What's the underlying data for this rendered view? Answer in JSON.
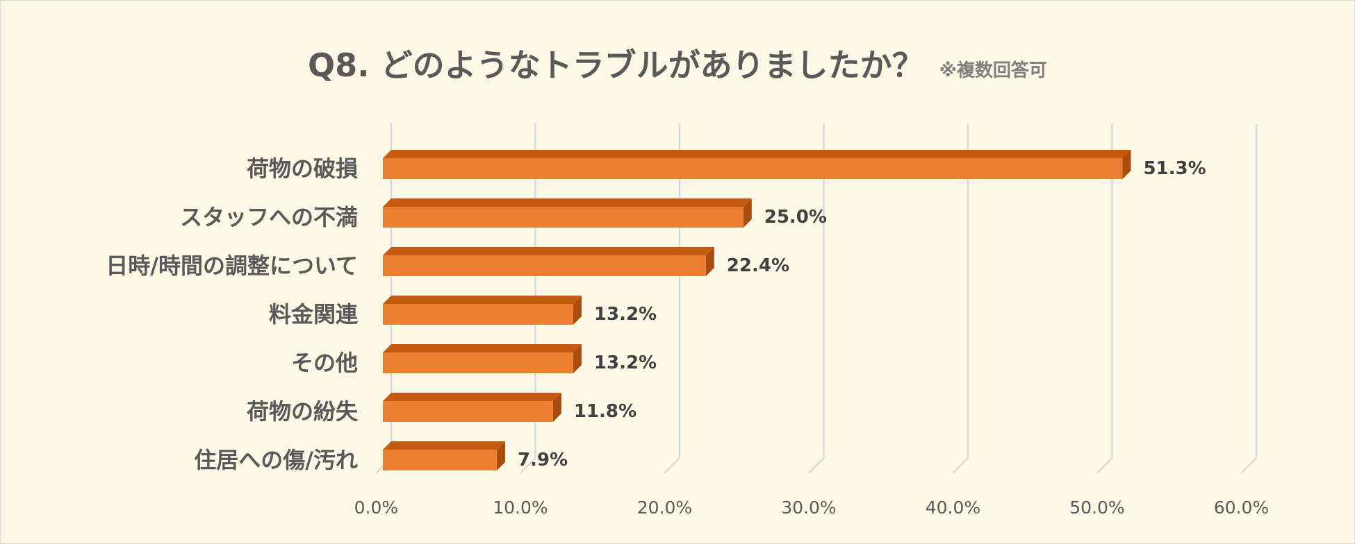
{
  "title": "Q8. どのようなトラブルがありましたか？",
  "subtitle": "※複数回答可",
  "chart_data": {
    "type": "bar",
    "orientation": "horizontal",
    "style": "3d",
    "categories": [
      "荷物の破損",
      "スタッフへの不満",
      "日時/時間の調整について",
      "料金関連",
      "その他",
      "荷物の紛失",
      "住居への傷/汚れ"
    ],
    "values": [
      51.3,
      25.0,
      22.4,
      13.2,
      13.2,
      11.8,
      7.9
    ],
    "value_labels": [
      "51.3%",
      "25.0%",
      "22.4%",
      "13.2%",
      "13.2%",
      "11.8%",
      "7.9%"
    ],
    "xlim": [
      0,
      60
    ],
    "x_ticks": [
      0,
      10,
      20,
      30,
      40,
      50,
      60
    ],
    "x_tick_labels": [
      "0.0%",
      "10.0%",
      "20.0%",
      "30.0%",
      "40.0%",
      "50.0%",
      "60.0%"
    ],
    "grid": true,
    "legend": "none",
    "colors": {
      "bar_front": "#ed7d31",
      "bar_top": "#c55a11",
      "bar_side": "#a84c0f",
      "grid": "#d9d9d9",
      "background": "#fef9e6"
    }
  }
}
